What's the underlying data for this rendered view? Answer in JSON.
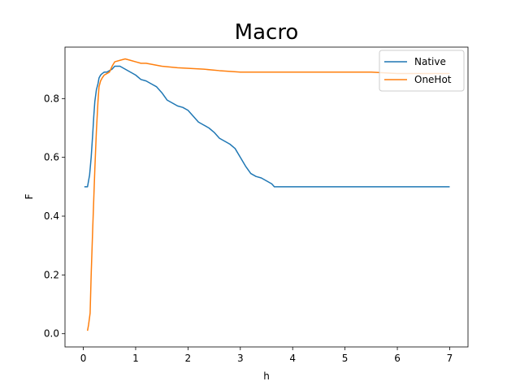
{
  "chart_data": {
    "type": "line",
    "title": "Macro",
    "xlabel": "h",
    "ylabel": "F",
    "xlim": [
      -0.35,
      7.35
    ],
    "ylim": [
      -0.045,
      0.975
    ],
    "xticks": [
      0,
      1,
      2,
      3,
      4,
      5,
      6,
      7
    ],
    "yticks": [
      0.0,
      0.2,
      0.4,
      0.6,
      0.8
    ],
    "grid": false,
    "legend_position": "top-right",
    "series": [
      {
        "name": "Native",
        "color": "#1f77b4",
        "x": [
          0.02,
          0.08,
          0.1,
          0.12,
          0.15,
          0.18,
          0.2,
          0.22,
          0.25,
          0.28,
          0.3,
          0.33,
          0.36,
          0.4,
          0.45,
          0.5,
          0.55,
          0.6,
          0.7,
          0.8,
          0.9,
          1.0,
          1.1,
          1.2,
          1.3,
          1.4,
          1.5,
          1.6,
          1.7,
          1.8,
          1.9,
          2.0,
          2.1,
          2.2,
          2.3,
          2.4,
          2.5,
          2.6,
          2.7,
          2.8,
          2.9,
          3.0,
          3.1,
          3.2,
          3.3,
          3.4,
          3.5,
          3.6,
          3.65,
          4.0,
          5.0,
          6.0,
          7.0
        ],
        "y": [
          0.5,
          0.5,
          0.52,
          0.54,
          0.6,
          0.68,
          0.74,
          0.79,
          0.83,
          0.85,
          0.87,
          0.88,
          0.885,
          0.89,
          0.89,
          0.895,
          0.9,
          0.91,
          0.91,
          0.9,
          0.89,
          0.88,
          0.865,
          0.86,
          0.85,
          0.84,
          0.82,
          0.795,
          0.785,
          0.775,
          0.77,
          0.76,
          0.74,
          0.72,
          0.71,
          0.7,
          0.685,
          0.665,
          0.655,
          0.645,
          0.63,
          0.6,
          0.57,
          0.545,
          0.535,
          0.53,
          0.52,
          0.51,
          0.5,
          0.5,
          0.5,
          0.5,
          0.5
        ]
      },
      {
        "name": "OneHot",
        "color": "#ff7f0e",
        "x": [
          0.08,
          0.1,
          0.13,
          0.15,
          0.18,
          0.2,
          0.22,
          0.25,
          0.28,
          0.3,
          0.33,
          0.36,
          0.4,
          0.45,
          0.5,
          0.55,
          0.6,
          0.7,
          0.8,
          0.9,
          1.0,
          1.1,
          1.2,
          1.5,
          1.8,
          2.3,
          2.6,
          3.0,
          4.0,
          5.0,
          5.5,
          6.0,
          6.5,
          7.0
        ],
        "y": [
          0.01,
          0.03,
          0.07,
          0.2,
          0.36,
          0.46,
          0.56,
          0.69,
          0.79,
          0.84,
          0.86,
          0.87,
          0.88,
          0.885,
          0.89,
          0.91,
          0.925,
          0.93,
          0.935,
          0.93,
          0.925,
          0.92,
          0.92,
          0.91,
          0.905,
          0.9,
          0.895,
          0.89,
          0.89,
          0.89,
          0.89,
          0.885,
          0.885,
          0.885
        ]
      }
    ]
  }
}
